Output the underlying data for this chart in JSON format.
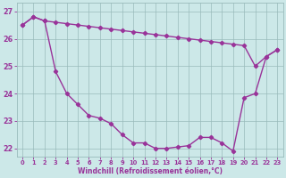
{
  "line1_x": [
    0,
    1,
    2,
    3,
    4,
    5,
    6,
    7,
    8,
    9,
    10,
    11,
    12,
    13,
    14,
    15,
    16,
    17,
    18,
    19,
    20,
    21,
    22,
    23
  ],
  "line1_y": [
    26.5,
    26.8,
    26.65,
    26.6,
    26.55,
    26.5,
    26.45,
    26.4,
    26.35,
    26.3,
    26.25,
    26.2,
    26.15,
    26.1,
    26.05,
    26.0,
    25.95,
    25.9,
    25.85,
    25.8,
    25.75,
    25.0,
    25.35,
    25.6
  ],
  "line2_x": [
    0,
    1,
    2,
    3,
    4,
    5,
    6,
    7,
    8,
    9,
    10,
    11,
    12,
    13,
    14,
    15,
    16,
    17,
    18,
    19,
    20,
    21,
    22,
    23
  ],
  "line2_y": [
    26.5,
    26.8,
    26.65,
    24.8,
    24.0,
    23.6,
    23.2,
    23.1,
    22.9,
    22.5,
    22.2,
    22.2,
    22.0,
    22.0,
    22.05,
    22.1,
    22.4,
    22.4,
    22.2,
    21.9,
    23.85,
    24.0,
    25.35,
    25.6
  ],
  "xlabel": "Windchill (Refroidissement éolien,°C)",
  "xlim_min": -0.5,
  "xlim_max": 23.5,
  "ylim_min": 21.7,
  "ylim_max": 27.3,
  "yticks": [
    22,
    23,
    24,
    25,
    26,
    27
  ],
  "xticks": [
    0,
    1,
    2,
    3,
    4,
    5,
    6,
    7,
    8,
    9,
    10,
    11,
    12,
    13,
    14,
    15,
    16,
    17,
    18,
    19,
    20,
    21,
    22,
    23
  ],
  "line_color": "#993399",
  "bg_color": "#cce8e8",
  "grid_color": "#99bbbb",
  "marker": "D",
  "markersize": 2.2,
  "linewidth": 1.0
}
